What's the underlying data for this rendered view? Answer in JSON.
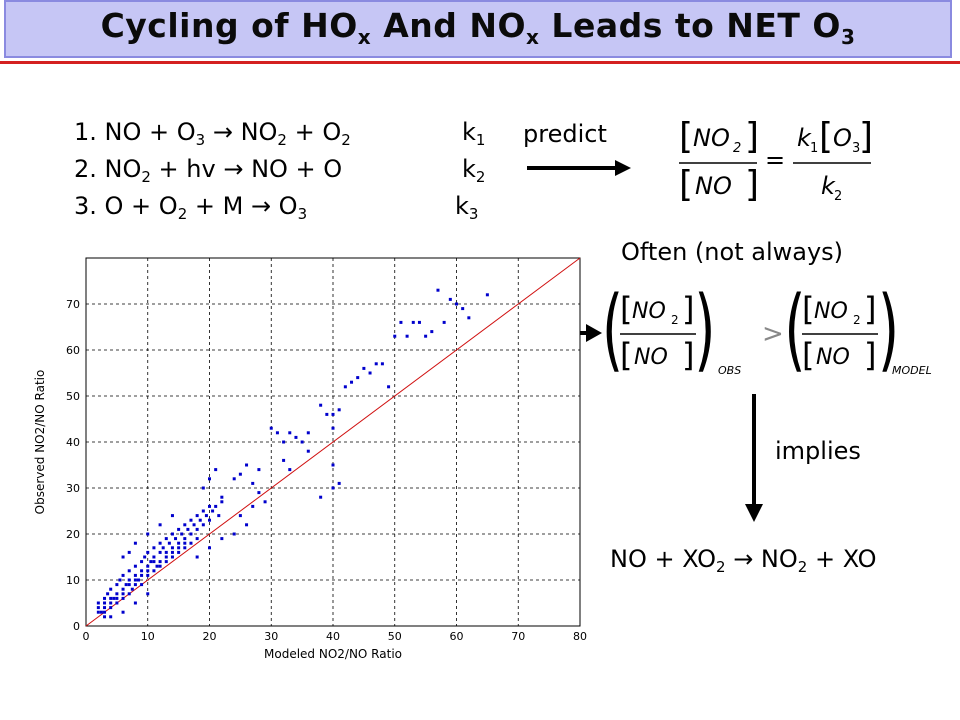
{
  "title": {
    "main": "Cycling of HO",
    "sub1": "x",
    "mid": " And NO",
    "sub2": "x",
    "end": " Leads to NET O",
    "sub3": "3"
  },
  "reactions": [
    {
      "text_a": "1. NO + O",
      "s1": "3",
      "arrow": " → ",
      "text_b": "NO",
      "s2": "2",
      "text_c": " + O",
      "s3": "2",
      "k": "k",
      "ks": "1"
    },
    {
      "text_a": "2. NO",
      "s1": "2",
      "text_b": " + hv → NO + O",
      "k": "k",
      "ks": "2"
    },
    {
      "text_a": "3. O + O",
      "s1": "2",
      "text_b": " + M → O",
      "s2": "3",
      "k": "k",
      "ks": "3"
    }
  ],
  "labels": {
    "predict": "predict",
    "often": "Often (not always)",
    "implies": "implies",
    "final_a": "NO + XO",
    "final_s1": "2",
    "final_b": " → NO",
    "final_s2": "2",
    "final_c": " + XO"
  },
  "formula1": {
    "num_l": "NO",
    "num_sub": "2",
    "den_l": "NO",
    "eq": "=",
    "k1": "k",
    "k1s": "1",
    "o3": "O",
    "o3s": "3",
    "k2": "k",
    "k2s": "2"
  },
  "formula2": {
    "num": "NO",
    "num_sub": "2",
    "den": "NO",
    "obs": "OBS",
    "gt": ">",
    "model": "MODEL"
  },
  "chart_data": {
    "type": "scatter",
    "xlabel": "Modeled NO2/NO Ratio",
    "ylabel": "Observed NO2/NO Ratio",
    "xlim": [
      0,
      80
    ],
    "ylim": [
      0,
      80
    ],
    "xticks": [
      0,
      10,
      20,
      30,
      40,
      50,
      60,
      70,
      80
    ],
    "yticks": [
      0,
      10,
      20,
      30,
      40,
      50,
      60,
      70
    ],
    "grid": true,
    "one_to_one_line": true,
    "colors": {
      "points": "#0000cc",
      "line": "#d01010"
    },
    "points": [
      [
        2,
        4
      ],
      [
        2,
        5
      ],
      [
        2.5,
        3
      ],
      [
        3,
        6
      ],
      [
        3,
        4
      ],
      [
        3.5,
        7
      ],
      [
        4,
        5
      ],
      [
        4,
        8
      ],
      [
        4.5,
        6
      ],
      [
        5,
        9
      ],
      [
        5,
        7
      ],
      [
        5.5,
        10
      ],
      [
        6,
        8
      ],
      [
        6,
        11
      ],
      [
        6.5,
        9
      ],
      [
        7,
        12
      ],
      [
        7,
        10
      ],
      [
        7.5,
        8
      ],
      [
        8,
        13
      ],
      [
        8,
        11
      ],
      [
        8.5,
        10
      ],
      [
        9,
        14
      ],
      [
        9,
        12
      ],
      [
        9.5,
        15
      ],
      [
        10,
        13
      ],
      [
        10,
        16
      ],
      [
        10.5,
        14
      ],
      [
        11,
        15
      ],
      [
        11,
        17
      ],
      [
        11.5,
        13
      ],
      [
        12,
        16
      ],
      [
        12,
        18
      ],
      [
        12.5,
        17
      ],
      [
        13,
        19
      ],
      [
        13,
        15
      ],
      [
        13.5,
        18
      ],
      [
        14,
        20
      ],
      [
        14,
        17
      ],
      [
        14.5,
        19
      ],
      [
        15,
        21
      ],
      [
        15,
        18
      ],
      [
        15.5,
        20
      ],
      [
        16,
        22
      ],
      [
        16,
        19
      ],
      [
        16.5,
        21
      ],
      [
        17,
        23
      ],
      [
        17,
        20
      ],
      [
        17.5,
        22
      ],
      [
        18,
        24
      ],
      [
        18,
        21
      ],
      [
        18.5,
        23
      ],
      [
        19,
        25
      ],
      [
        19,
        22
      ],
      [
        19.5,
        24
      ],
      [
        20,
        26
      ],
      [
        20,
        23
      ],
      [
        20.5,
        25
      ],
      [
        21,
        26
      ],
      [
        21.5,
        24
      ],
      [
        22,
        27
      ],
      [
        3,
        3
      ],
      [
        4,
        4
      ],
      [
        5,
        5
      ],
      [
        6,
        6
      ],
      [
        7,
        7
      ],
      [
        8,
        9
      ],
      [
        9,
        9
      ],
      [
        10,
        11
      ],
      [
        11,
        12
      ],
      [
        12,
        13
      ],
      [
        13,
        14
      ],
      [
        14,
        15
      ],
      [
        15,
        16
      ],
      [
        16,
        17
      ],
      [
        17,
        18
      ],
      [
        18,
        19
      ],
      [
        2,
        3
      ],
      [
        3,
        5
      ],
      [
        4,
        6
      ],
      [
        5,
        6
      ],
      [
        6,
        7
      ],
      [
        7,
        9
      ],
      [
        8,
        10
      ],
      [
        9,
        11
      ],
      [
        10,
        12
      ],
      [
        11,
        14
      ],
      [
        12,
        14
      ],
      [
        13,
        16
      ],
      [
        14,
        16
      ],
      [
        15,
        17
      ],
      [
        16,
        18
      ],
      [
        6,
        15
      ],
      [
        7,
        16
      ],
      [
        8,
        18
      ],
      [
        10,
        20
      ],
      [
        12,
        22
      ],
      [
        14,
        24
      ],
      [
        19,
        30
      ],
      [
        20,
        32
      ],
      [
        21,
        34
      ],
      [
        22,
        28
      ],
      [
        24,
        32
      ],
      [
        25,
        33
      ],
      [
        26,
        35
      ],
      [
        27,
        31
      ],
      [
        28,
        29
      ],
      [
        28,
        34
      ],
      [
        29,
        27
      ],
      [
        30,
        43
      ],
      [
        31,
        42
      ],
      [
        32,
        40
      ],
      [
        33,
        42
      ],
      [
        34,
        41
      ],
      [
        35,
        40
      ],
      [
        36,
        42
      ],
      [
        38,
        48
      ],
      [
        40,
        46
      ],
      [
        42,
        52
      ],
      [
        43,
        53
      ],
      [
        44,
        54
      ],
      [
        45,
        56
      ],
      [
        46,
        55
      ],
      [
        47,
        57
      ],
      [
        48,
        57
      ],
      [
        49,
        52
      ],
      [
        50,
        63
      ],
      [
        51,
        66
      ],
      [
        52,
        63
      ],
      [
        53,
        66
      ],
      [
        54,
        66
      ],
      [
        55,
        63
      ],
      [
        56,
        64
      ],
      [
        57,
        73
      ],
      [
        58,
        66
      ],
      [
        59,
        71
      ],
      [
        60,
        70
      ],
      [
        61,
        69
      ],
      [
        62,
        67
      ],
      [
        65,
        72
      ],
      [
        40,
        35
      ],
      [
        38,
        28
      ],
      [
        40,
        30
      ],
      [
        22,
        19
      ],
      [
        24,
        20
      ],
      [
        26,
        22
      ],
      [
        20,
        17
      ],
      [
        18,
        15
      ],
      [
        6,
        3
      ],
      [
        8,
        5
      ],
      [
        10,
        7
      ],
      [
        4,
        2
      ],
      [
        3,
        2
      ],
      [
        41,
        31
      ],
      [
        25,
        24
      ],
      [
        27,
        26
      ],
      [
        32,
        36
      ],
      [
        33,
        34
      ],
      [
        40,
        43
      ],
      [
        39,
        46
      ],
      [
        41,
        47
      ],
      [
        36,
        38
      ]
    ]
  }
}
